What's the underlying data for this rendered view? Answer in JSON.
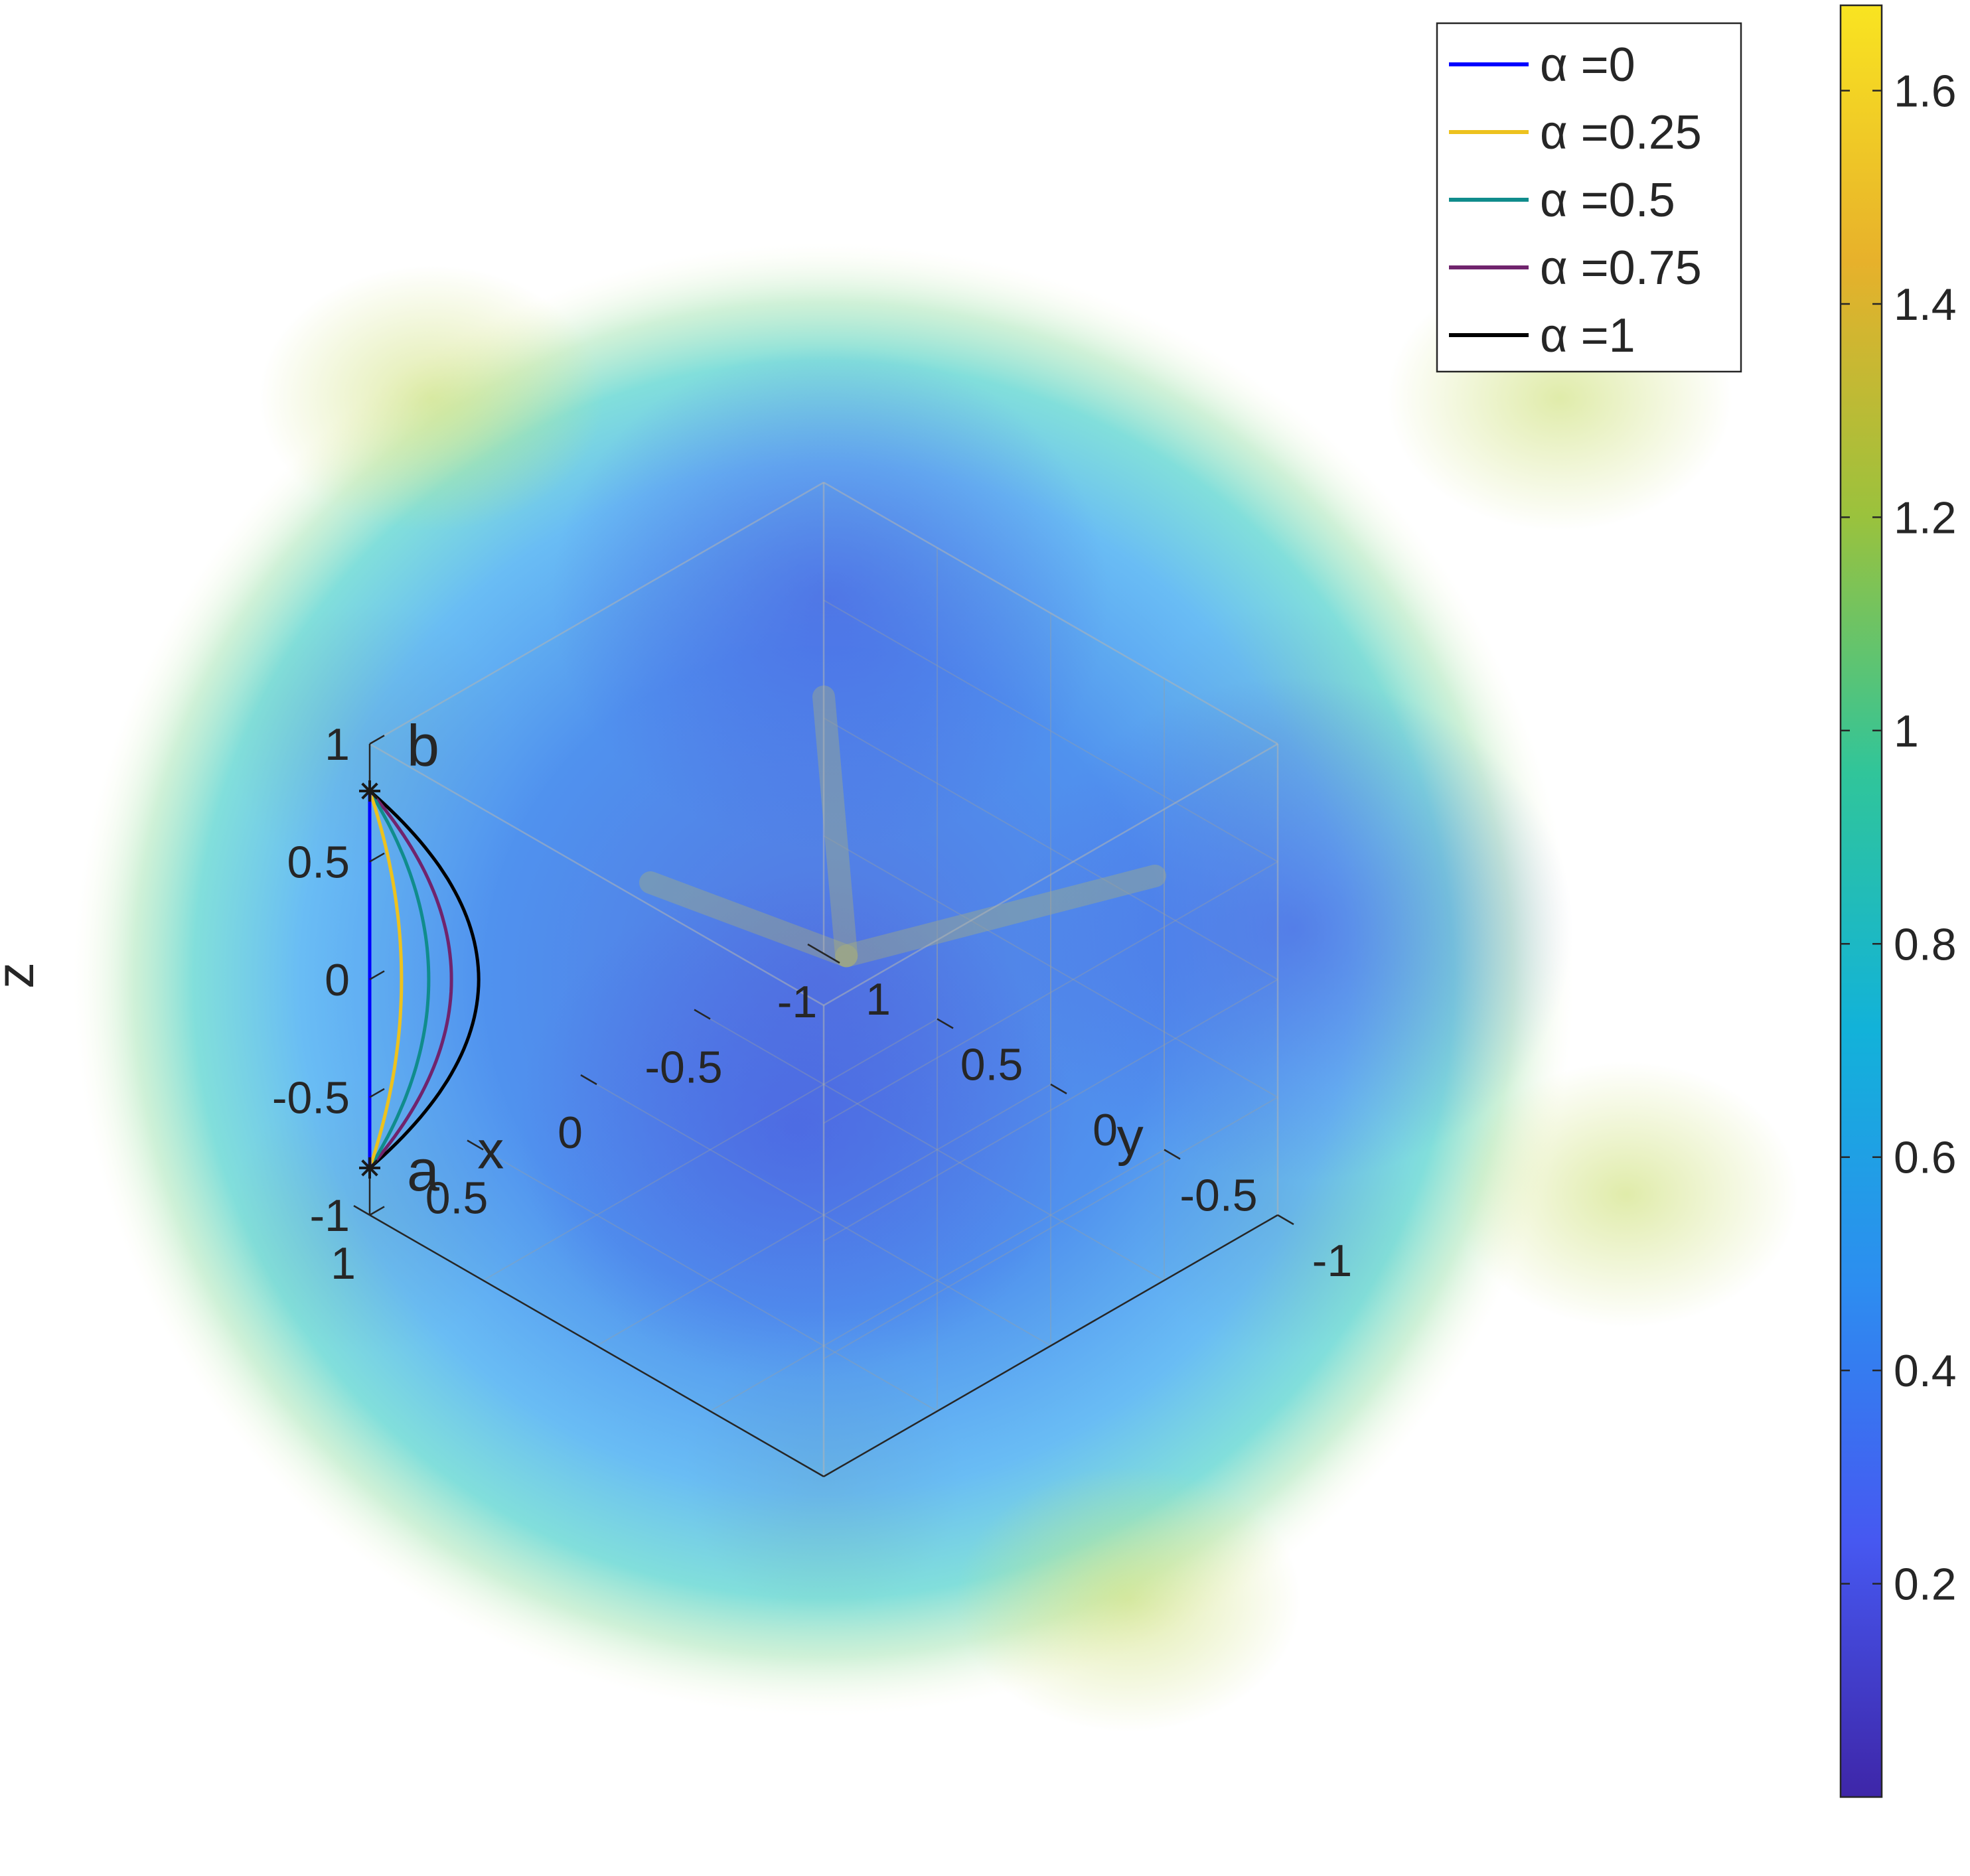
{
  "chart_data": {
    "type": "3d-volume-with-curves",
    "title": "",
    "axes": {
      "x": {
        "label": "x",
        "range": [
          -1,
          1
        ],
        "ticks": [
          "-1",
          "-0.5",
          "0",
          "0.5",
          "1"
        ]
      },
      "y": {
        "label": "y",
        "range": [
          -1,
          1
        ],
        "ticks": [
          "-1",
          "-0.5",
          "0",
          "0.5",
          "1"
        ]
      },
      "z": {
        "label": "z",
        "range": [
          -1,
          1
        ],
        "ticks": [
          "-1",
          "-0.5",
          "0",
          "0.5",
          "1"
        ]
      }
    },
    "grid": true,
    "colorbar": {
      "range": [
        0,
        1.68
      ],
      "ticks": [
        "0.2",
        "0.4",
        "0.6",
        "0.8",
        "1",
        "1.2",
        "1.4",
        "1.6"
      ],
      "tick_values": [
        0.2,
        0.4,
        0.6,
        0.8,
        1.0,
        1.2,
        1.4,
        1.6
      ],
      "colormap": "parula",
      "colormap_stops": [
        "#3e26a8",
        "#4658f1",
        "#2d8df0",
        "#12b2d9",
        "#30c59a",
        "#9ac23d",
        "#e7b12b",
        "#f9e421"
      ]
    },
    "points": [
      {
        "label": "a",
        "x": 1,
        "y": 1,
        "z": -0.8
      },
      {
        "label": "b",
        "x": 1,
        "y": 1,
        "z": 0.8
      }
    ],
    "legend": {
      "position": "top-right"
    },
    "series": [
      {
        "name": "α =0",
        "alpha": 0,
        "color": "#0000ff",
        "bulge": 0.0
      },
      {
        "name": "α =0.25",
        "alpha": 0.25,
        "color": "#edc21e",
        "bulge": 0.07
      },
      {
        "name": "α =0.5",
        "alpha": 0.5,
        "color": "#108c8c",
        "bulge": 0.13
      },
      {
        "name": "α =0.75",
        "alpha": 0.75,
        "color": "#70246d",
        "bulge": 0.18
      },
      {
        "name": "α =1",
        "alpha": 1,
        "color": "#000000",
        "bulge": 0.24
      }
    ]
  }
}
